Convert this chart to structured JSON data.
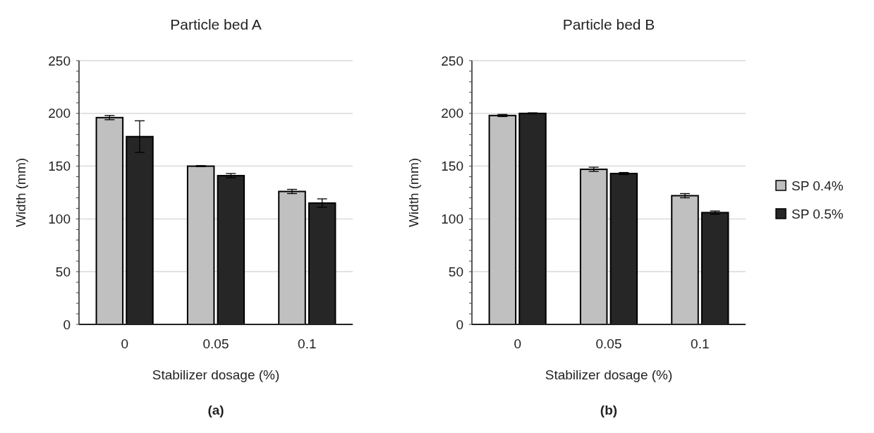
{
  "chart_data": [
    {
      "type": "bar",
      "title": "Particle bed A",
      "xlabel": "Stabilizer dosage (%)",
      "ylabel": "Width (mm)",
      "categories": [
        "0",
        "0.05",
        "0.1"
      ],
      "series": [
        {
          "color": "#c0c0c0",
          "values": [
            196,
            150,
            126
          ],
          "errors": [
            2,
            0.5,
            2
          ]
        },
        {
          "color": "#262626",
          "values": [
            178,
            141,
            115
          ],
          "errors": [
            15,
            2,
            4
          ]
        }
      ],
      "ylim": [
        0,
        250
      ],
      "yticks": [
        0,
        {
          "value": 10,
          "label": null
        },
        {
          "value": 20,
          "label": null
        },
        {
          "value": 30,
          "label": null
        },
        {
          "value": 40,
          "label": null
        },
        50,
        {
          "value": 60,
          "label": null
        },
        {
          "value": 70,
          "label": null
        },
        {
          "value": 80,
          "label": null
        },
        {
          "value": 90,
          "label": null
        },
        100,
        {
          "value": 110,
          "label": null
        },
        {
          "value": 120,
          "label": null
        },
        {
          "value": 130,
          "label": null
        },
        {
          "value": 140,
          "label": null
        },
        150,
        {
          "value": 160,
          "label": null
        },
        {
          "value": 170,
          "label": null
        },
        {
          "value": 180,
          "label": null
        },
        {
          "value": 190,
          "label": null
        },
        200,
        {
          "value": 210,
          "label": null
        },
        {
          "value": 220,
          "label": null
        },
        {
          "value": 230,
          "label": null
        },
        {
          "value": 240,
          "label": null
        },
        250
      ],
      "grid": "y",
      "legend": false,
      "annotations": [
        "(a)"
      ]
    },
    {
      "type": "bar",
      "title": "Particle bed B",
      "xlabel": "Stabilizer dosage (%)",
      "ylabel": "Width (mm)",
      "categories": [
        "0",
        "0.05",
        "0.1"
      ],
      "series": [
        {
          "name": "SP 0.4%",
          "color": "#c0c0c0",
          "values": [
            198,
            147,
            122
          ],
          "errors": [
            1,
            2,
            2
          ]
        },
        {
          "name": "SP 0.5%",
          "color": "#262626",
          "values": [
            200,
            143,
            106
          ],
          "errors": [
            0.5,
            1,
            1.5
          ]
        }
      ],
      "ylim": [
        0,
        250
      ],
      "yticks": [
        0,
        {
          "value": 10,
          "label": null
        },
        {
          "value": 20,
          "label": null
        },
        {
          "value": 30,
          "label": null
        },
        {
          "value": 40,
          "label": null
        },
        50,
        {
          "value": 60,
          "label": null
        },
        {
          "value": 70,
          "label": null
        },
        {
          "value": 80,
          "label": null
        },
        {
          "value": 90,
          "label": null
        },
        100,
        {
          "value": 110,
          "label": null
        },
        {
          "value": 120,
          "label": null
        },
        {
          "value": 130,
          "label": null
        },
        {
          "value": 140,
          "label": null
        },
        150,
        {
          "value": 160,
          "label": null
        },
        {
          "value": 170,
          "label": null
        },
        {
          "value": 180,
          "label": null
        },
        {
          "value": 190,
          "label": null
        },
        200,
        {
          "value": 210,
          "label": null
        },
        {
          "value": 220,
          "label": null
        },
        {
          "value": 230,
          "label": null
        },
        {
          "value": 240,
          "label": null
        },
        250
      ],
      "grid": "y",
      "legend": "right",
      "annotations": [
        "(b)"
      ]
    }
  ]
}
